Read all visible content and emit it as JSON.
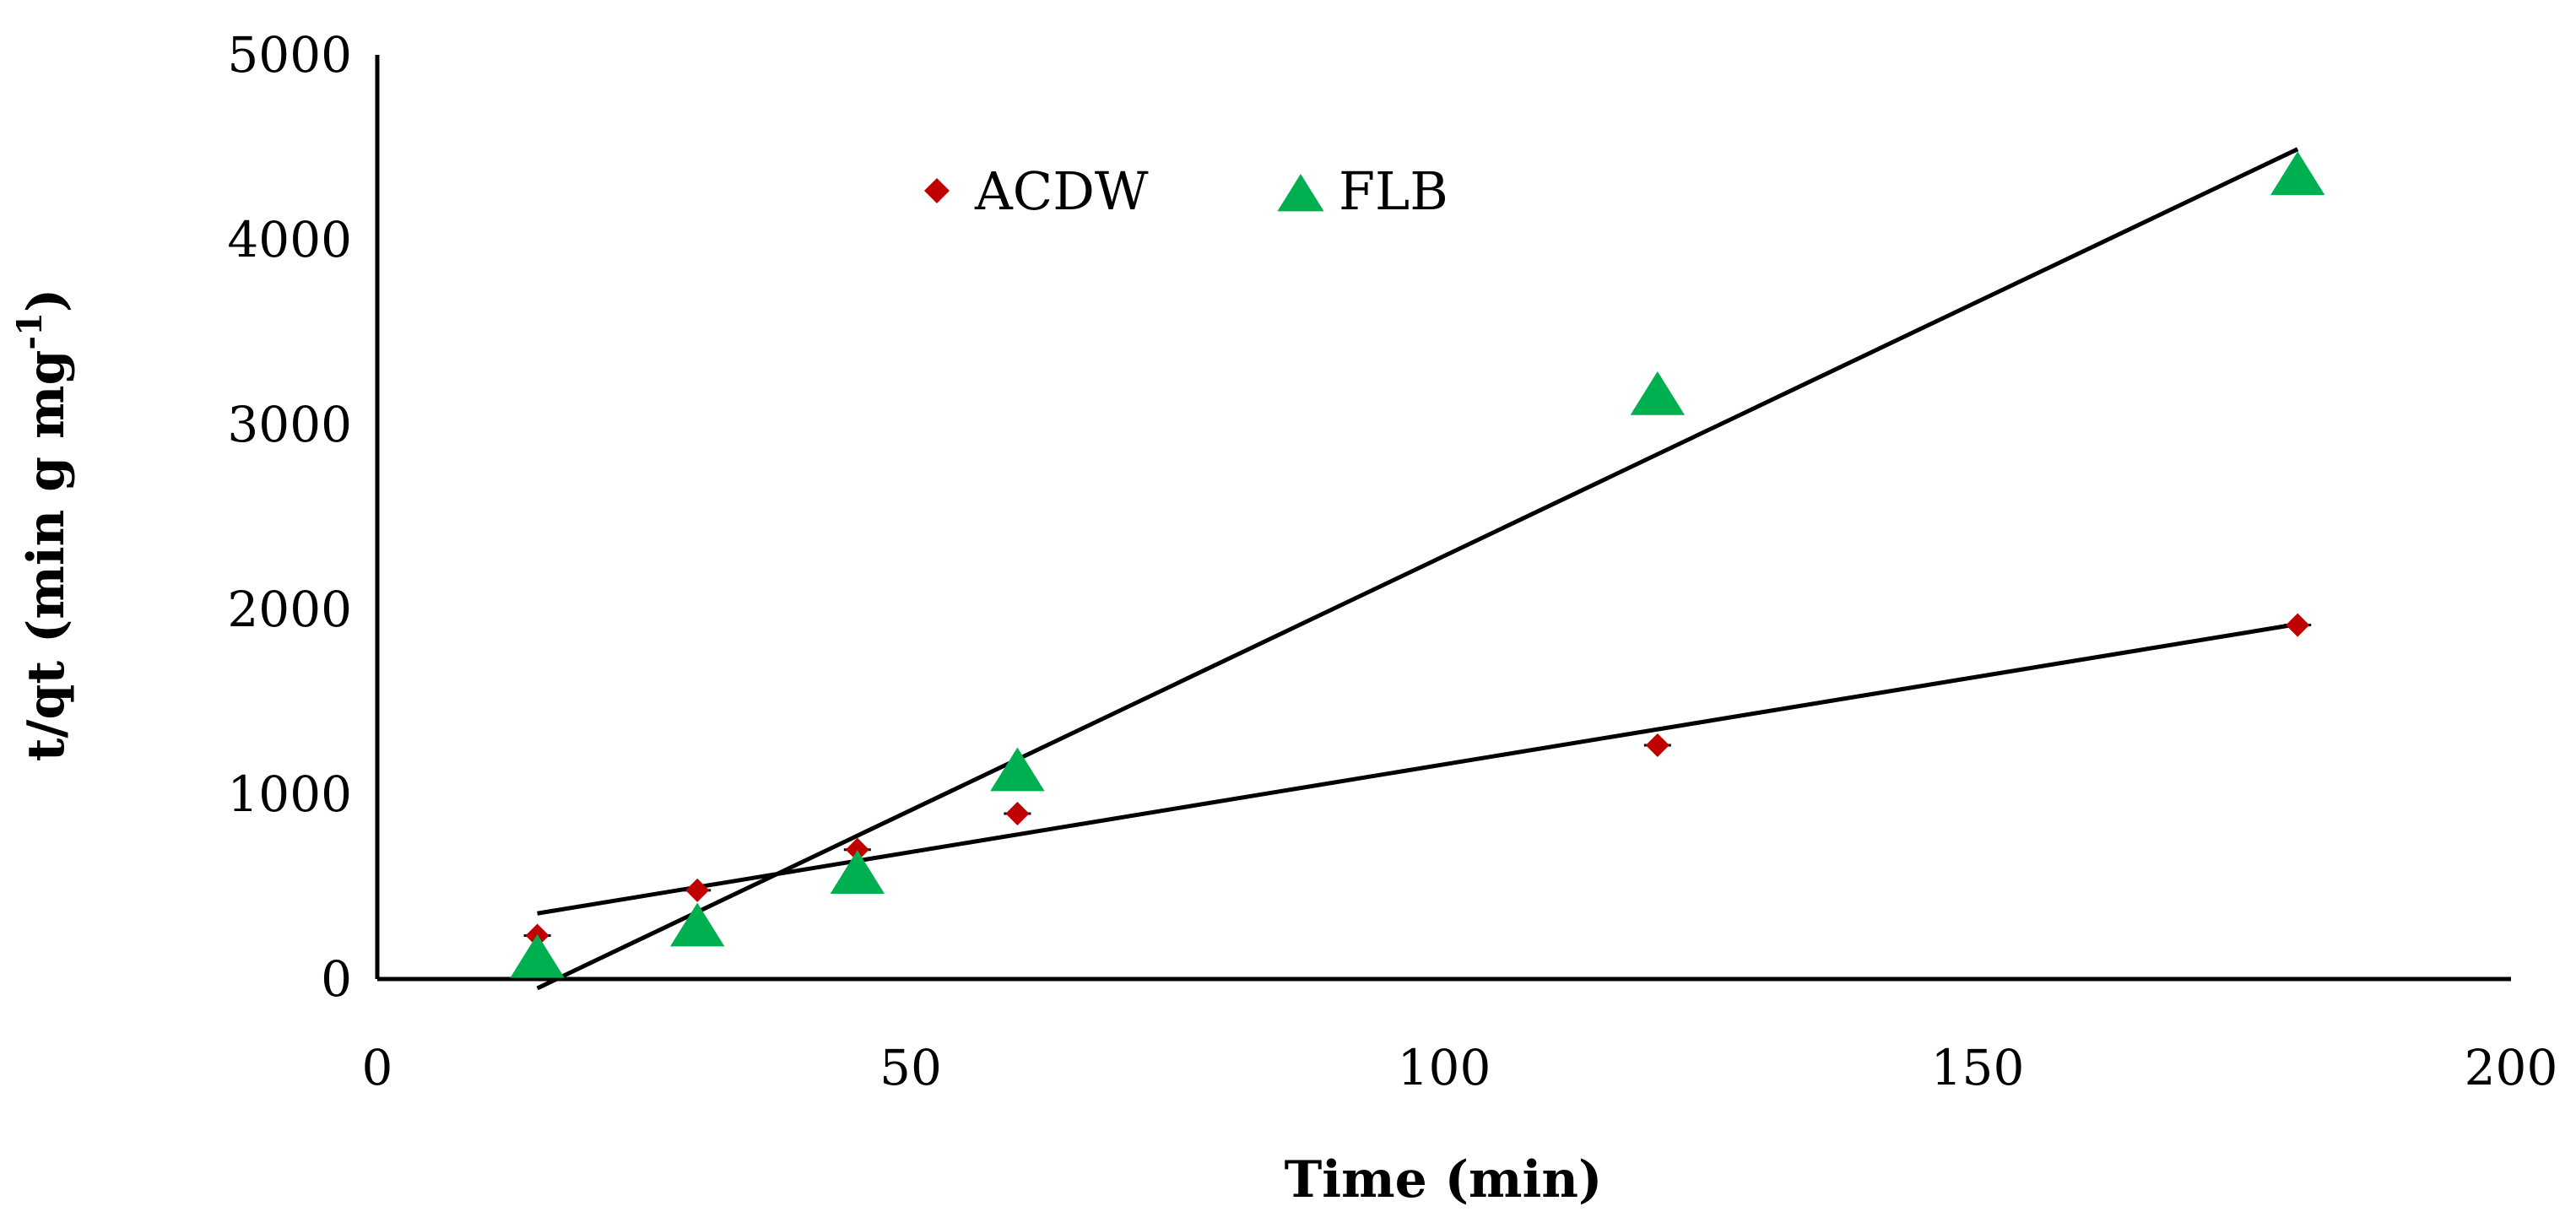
{
  "chart_data": {
    "type": "scatter",
    "title": "",
    "xlabel": "Time (min)",
    "ylabel": {
      "main": "t/qt (min g mg",
      "sup": "-1",
      "close": ")"
    },
    "xlim": [
      0,
      200
    ],
    "ylim": [
      0,
      5000
    ],
    "xticks": [
      "0",
      "50",
      "100",
      "150",
      "200"
    ],
    "yticks": [
      "0",
      "1000",
      "2000",
      "3000",
      "4000",
      "5000"
    ],
    "grid": false,
    "legend_position": "top-center",
    "series": [
      {
        "name": "ACDW",
        "marker": "diamond",
        "color": "#c00000",
        "x": [
          15,
          30,
          45,
          60,
          120,
          180
        ],
        "y": [
          235,
          480,
          700,
          895,
          1265,
          1915
        ],
        "trendline": {
          "x": [
            15,
            180
          ],
          "y": [
            355,
            1920
          ]
        }
      },
      {
        "name": "FLB",
        "marker": "triangle",
        "color": "#00b050",
        "x": [
          15,
          30,
          45,
          60,
          120,
          180
        ],
        "y": [
          115,
          285,
          570,
          1125,
          3160,
          4350
        ],
        "trendline": {
          "x": [
            15,
            180
          ],
          "y": [
            -50,
            4490
          ]
        }
      }
    ]
  }
}
